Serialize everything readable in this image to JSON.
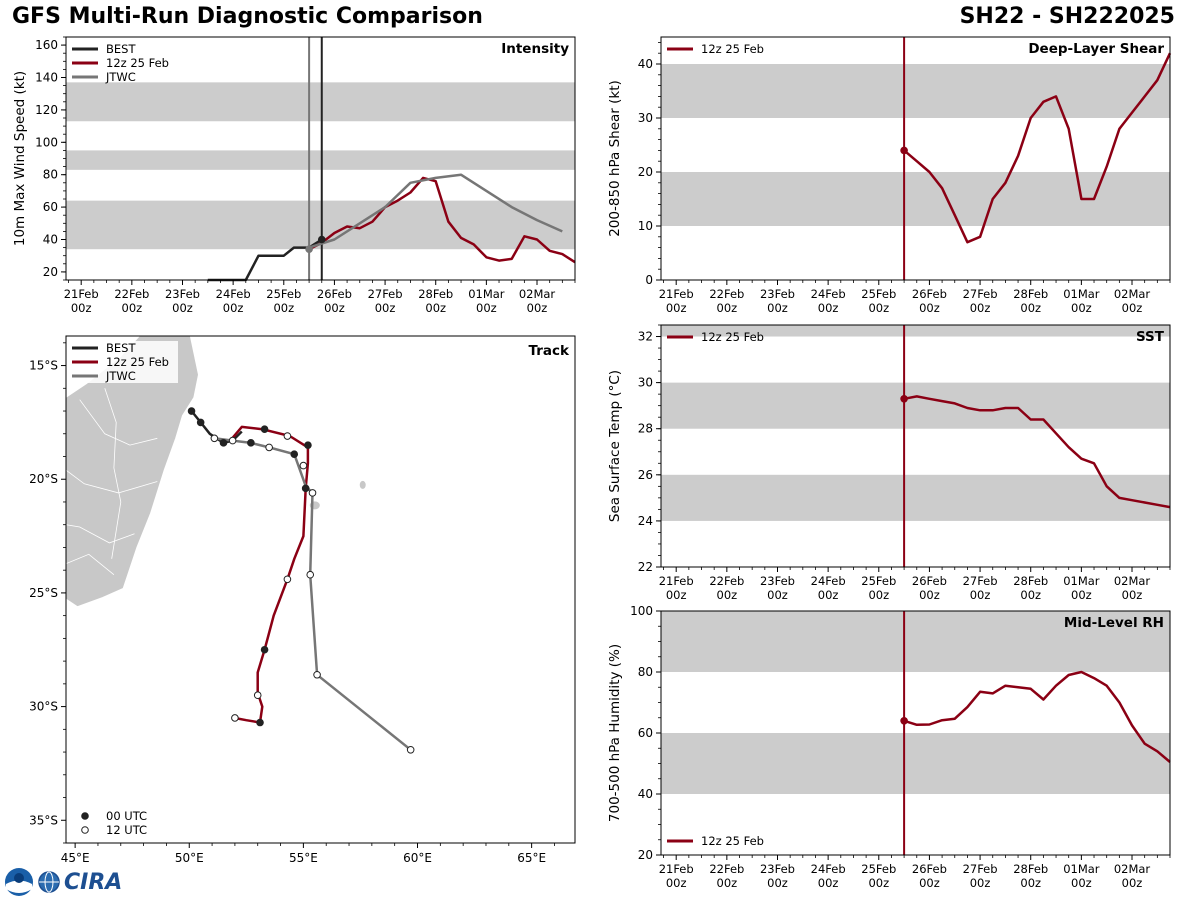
{
  "header": {
    "title": "GFS Multi-Run Diagnostic Comparison",
    "storm_id": "SH22 - SH222025"
  },
  "logo": {
    "text": "CIRA"
  },
  "time_ticks": [
    {
      "day": "21Feb",
      "hour": "00z"
    },
    {
      "day": "22Feb",
      "hour": "00z"
    },
    {
      "day": "23Feb",
      "hour": "00z"
    },
    {
      "day": "24Feb",
      "hour": "00z"
    },
    {
      "day": "25Feb",
      "hour": "00z"
    },
    {
      "day": "26Feb",
      "hour": "00z"
    },
    {
      "day": "27Feb",
      "hour": "00z"
    },
    {
      "day": "28Feb",
      "hour": "00z"
    },
    {
      "day": "01Mar",
      "hour": "00z"
    },
    {
      "day": "02Mar",
      "hour": "00z"
    }
  ],
  "colors": {
    "best": "#222222",
    "gfs": "#8b0014",
    "jtwc": "#767676",
    "band": "#cccccc",
    "land": "#c8c8c8"
  },
  "chart_data": [
    {
      "id": "intensity",
      "type": "line",
      "title": "Intensity",
      "ylabel": "10m Max Wind Speed (kt)",
      "x_units": "days since 21Feb 00z",
      "xlim": [
        -0.3,
        9.75
      ],
      "ylim": [
        15,
        165
      ],
      "yticks": [
        20,
        40,
        60,
        80,
        100,
        120,
        140,
        160
      ],
      "yminor": 5,
      "bands": [
        [
          34,
          64
        ],
        [
          83,
          95
        ],
        [
          113,
          137
        ]
      ],
      "vlines": [
        {
          "x": 4.5,
          "color": "#767676"
        },
        {
          "x": 4.75,
          "color": "#222222"
        }
      ],
      "legend": [
        "BEST",
        "12z 25 Feb",
        "JTWC"
      ],
      "series": [
        {
          "name": "BEST",
          "color": "#222222",
          "x": [
            2.5,
            3.25,
            3.5,
            4.0,
            4.2,
            4.5,
            4.75
          ],
          "y": [
            15,
            15,
            30,
            30,
            35,
            35,
            40
          ]
        },
        {
          "name": "12z 25 Feb",
          "color": "#8b0014",
          "x": [
            4.5,
            4.75,
            5.0,
            5.25,
            5.5,
            5.75,
            6.0,
            6.25,
            6.5,
            6.75,
            7.0,
            7.25,
            7.5,
            7.75,
            8.0,
            8.25,
            8.5,
            8.75,
            9.0,
            9.25,
            9.5,
            9.75
          ],
          "y": [
            34,
            38,
            44,
            48,
            47,
            51,
            60,
            64,
            69,
            78,
            76,
            51,
            41,
            37,
            29,
            27,
            28,
            42,
            40,
            33,
            31,
            26
          ]
        },
        {
          "name": "JTWC",
          "color": "#767676",
          "x": [
            4.5,
            5.0,
            5.5,
            6.0,
            6.5,
            7.0,
            7.5,
            8.0,
            8.5,
            9.0,
            9.5
          ],
          "y": [
            35,
            40,
            50,
            60,
            75,
            78,
            80,
            70,
            60,
            52,
            45
          ]
        }
      ],
      "markers": [
        {
          "x": 4.5,
          "y": 34,
          "color": "#767676"
        },
        {
          "x": 4.75,
          "y": 40,
          "color": "#222222"
        }
      ]
    },
    {
      "id": "shear",
      "type": "line",
      "title": "Deep-Layer Shear",
      "ylabel": "200-850 hPa Shear (kt)",
      "x_units": "days since 21Feb 00z",
      "xlim": [
        -0.3,
        9.75
      ],
      "ylim": [
        0,
        45
      ],
      "yticks": [
        0,
        10,
        20,
        30,
        40
      ],
      "yminor": 2,
      "bands": [
        [
          10,
          20
        ],
        [
          30,
          40
        ]
      ],
      "vlines": [
        {
          "x": 4.5,
          "color": "#8b0014"
        }
      ],
      "legend": [
        "12z 25 Feb"
      ],
      "series": [
        {
          "name": "12z 25 Feb",
          "color": "#8b0014",
          "x": [
            4.5,
            4.75,
            5.0,
            5.25,
            5.5,
            5.75,
            6.0,
            6.25,
            6.5,
            6.75,
            7.0,
            7.25,
            7.5,
            7.75,
            8.0,
            8.25,
            8.5,
            8.75,
            9.0,
            9.25,
            9.5,
            9.75
          ],
          "y": [
            24,
            22,
            20,
            17,
            12,
            7,
            8,
            15,
            18,
            23,
            30,
            33,
            34,
            28,
            15,
            15,
            21,
            28,
            31,
            34,
            37,
            42
          ]
        }
      ],
      "markers": [
        {
          "x": 4.5,
          "y": 24,
          "color": "#8b0014"
        }
      ]
    },
    {
      "id": "sst",
      "type": "line",
      "title": "SST",
      "ylabel": "Sea Surface Temp (°C)",
      "x_units": "days since 21Feb 00z",
      "xlim": [
        -0.3,
        9.75
      ],
      "ylim": [
        22,
        32.5
      ],
      "yticks": [
        22,
        24,
        26,
        28,
        30,
        32
      ],
      "yminor": 0.5,
      "bands": [
        [
          24,
          26
        ],
        [
          28,
          30
        ],
        [
          32,
          32.5
        ]
      ],
      "vlines": [
        {
          "x": 4.5,
          "color": "#8b0014"
        }
      ],
      "legend": [
        "12z 25 Feb"
      ],
      "series": [
        {
          "name": "12z 25 Feb",
          "color": "#8b0014",
          "x": [
            4.5,
            4.75,
            5.0,
            5.25,
            5.5,
            5.75,
            6.0,
            6.25,
            6.5,
            6.75,
            7.0,
            7.25,
            7.5,
            7.75,
            8.0,
            8.25,
            8.5,
            8.75,
            9.0,
            9.25,
            9.5,
            9.75
          ],
          "y": [
            29.3,
            29.4,
            29.3,
            29.2,
            29.1,
            28.9,
            28.8,
            28.8,
            28.9,
            28.9,
            28.4,
            28.4,
            27.8,
            27.2,
            26.7,
            26.5,
            25.5,
            25.0,
            24.9,
            24.8,
            24.7,
            24.6
          ]
        }
      ],
      "markers": [
        {
          "x": 4.5,
          "y": 29.3,
          "color": "#8b0014"
        }
      ]
    },
    {
      "id": "rh",
      "type": "line",
      "title": "Mid-Level RH",
      "ylabel": "700-500 hPa Humidity (%)",
      "x_units": "days since 21Feb 00z",
      "xlim": [
        -0.3,
        9.75
      ],
      "ylim": [
        20,
        100
      ],
      "yticks": [
        20,
        40,
        60,
        80,
        100
      ],
      "yminor": 5,
      "bands": [
        [
          40,
          60
        ],
        [
          80,
          100
        ]
      ],
      "vlines": [
        {
          "x": 4.5,
          "color": "#8b0014"
        }
      ],
      "legend": [
        "12z 25 Feb"
      ],
      "legend_position": "bottom-left",
      "series": [
        {
          "name": "12z 25 Feb",
          "color": "#8b0014",
          "x": [
            4.5,
            4.75,
            5.0,
            5.25,
            5.5,
            5.75,
            6.0,
            6.25,
            6.5,
            6.75,
            7.0,
            7.25,
            7.5,
            7.75,
            8.0,
            8.25,
            8.5,
            8.75,
            9.0,
            9.25,
            9.5,
            9.75
          ],
          "y": [
            64,
            62.7,
            62.8,
            64.2,
            64.7,
            68.5,
            73.5,
            73,
            75.5,
            75,
            74.5,
            71,
            75.5,
            79,
            80,
            78,
            75.5,
            70,
            62.5,
            56.5,
            54,
            50.5
          ]
        }
      ],
      "markers": [
        {
          "x": 4.5,
          "y": 64,
          "color": "#8b0014"
        }
      ]
    },
    {
      "id": "track",
      "type": "scatter",
      "title": "Track",
      "xlabel_ticks": [
        "45°E",
        "50°E",
        "55°E",
        "60°E",
        "65°E"
      ],
      "ylabel_ticks": [
        "15°S",
        "20°S",
        "25°S",
        "30°S",
        "35°S"
      ],
      "lon_range": [
        44.6,
        66.9
      ],
      "lat_range": [
        -36.0,
        -13.7
      ],
      "lon_ticks": [
        45,
        50,
        55,
        60,
        65
      ],
      "lat_ticks": [
        -15,
        -20,
        -25,
        -30,
        -35
      ],
      "legend": [
        "BEST",
        "12z 25 Feb",
        "JTWC"
      ],
      "marker_legend": [
        "00 UTC",
        "12 UTC"
      ],
      "series": [
        {
          "name": "BEST",
          "color": "#222222",
          "lon": [
            50.1,
            50.5,
            50.9,
            51.5,
            51.9,
            52.3
          ],
          "lat": [
            -17.0,
            -17.5,
            -18.0,
            -18.4,
            -18.3,
            -17.9
          ],
          "points": [
            {
              "lon": 50.1,
              "lat": -17.0,
              "utc": "00"
            },
            {
              "lon": 50.5,
              "lat": -17.5,
              "utc": "00"
            },
            {
              "lon": 51.5,
              "lat": -18.4,
              "utc": "00"
            }
          ]
        },
        {
          "name": "12z 25 Feb",
          "color": "#8b0014",
          "lon": [
            51.8,
            52.3,
            53.2,
            54.4,
            55.2,
            55.2,
            55.1,
            55.0,
            54.6,
            54.3,
            53.7,
            53.3,
            53.0,
            53.0,
            53.2,
            53.1,
            52.5,
            52.0
          ],
          "lat": [
            -18.3,
            -17.7,
            -17.8,
            -18.1,
            -18.6,
            -19.3,
            -20.4,
            -22.5,
            -23.5,
            -24.4,
            -26.0,
            -27.5,
            -28.5,
            -29.4,
            -30.0,
            -30.7,
            -30.6,
            -30.5
          ],
          "points": [
            {
              "lon": 53.3,
              "lat": -17.8,
              "utc": "00"
            },
            {
              "lon": 55.2,
              "lat": -18.5,
              "utc": "00"
            },
            {
              "lon": 55.1,
              "lat": -20.4,
              "utc": "00"
            },
            {
              "lon": 54.3,
              "lat": -24.4,
              "utc": "12"
            },
            {
              "lon": 53.3,
              "lat": -27.5,
              "utc": "00"
            },
            {
              "lon": 53.0,
              "lat": -29.5,
              "utc": "12"
            },
            {
              "lon": 53.1,
              "lat": -30.7,
              "utc": "00"
            },
            {
              "lon": 52.0,
              "lat": -30.5,
              "utc": "12"
            }
          ]
        },
        {
          "name": "JTWC",
          "color": "#767676",
          "lon": [
            51.1,
            51.9,
            52.7,
            53.5,
            54.6,
            55.1,
            55.4,
            55.3,
            55.6,
            59.7
          ],
          "lat": [
            -18.2,
            -18.3,
            -18.4,
            -18.6,
            -18.9,
            -20.3,
            -20.6,
            -24.2,
            -28.6,
            -31.9
          ],
          "points": [
            {
              "lon": 51.1,
              "lat": -18.2,
              "utc": "12"
            },
            {
              "lon": 51.9,
              "lat": -18.3,
              "utc": "12"
            },
            {
              "lon": 52.7,
              "lat": -18.4,
              "utc": "00"
            },
            {
              "lon": 53.5,
              "lat": -18.6,
              "utc": "12"
            },
            {
              "lon": 54.3,
              "lat": -18.1,
              "utc": "12"
            },
            {
              "lon": 54.6,
              "lat": -18.9,
              "utc": "00"
            },
            {
              "lon": 55.0,
              "lat": -19.4,
              "utc": "12"
            },
            {
              "lon": 55.4,
              "lat": -20.6,
              "utc": "12"
            },
            {
              "lon": 55.3,
              "lat": -24.2,
              "utc": "12"
            },
            {
              "lon": 55.6,
              "lat": -28.6,
              "utc": "12"
            },
            {
              "lon": 59.7,
              "lat": -31.9,
              "utc": "12"
            }
          ]
        }
      ]
    }
  ]
}
